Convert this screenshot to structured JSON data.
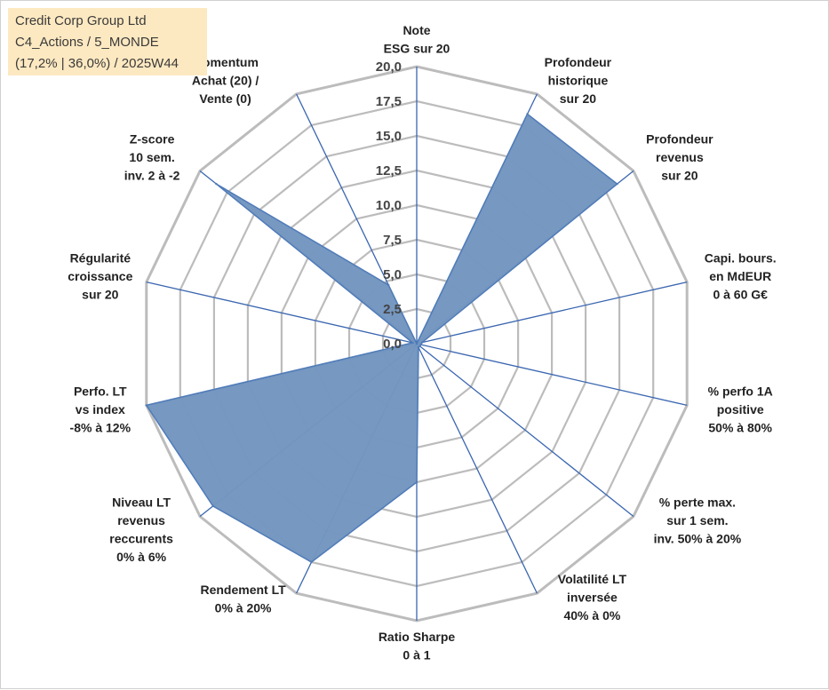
{
  "title_box": {
    "line1": "Credit Corp Group Ltd",
    "line2": "C4_Actions / 5_MONDE",
    "line3": "(17,2% | 36,0%) / 2025W44",
    "background": "#fde9c1"
  },
  "chart_data": {
    "type": "radar",
    "title": "Credit Corp Group Ltd",
    "rmin": 0,
    "rmax": 20,
    "tick_values": [
      0,
      2.5,
      5,
      7.5,
      10,
      12.5,
      15,
      17.5,
      20
    ],
    "tick_labels": [
      "0,0",
      "2,5",
      "5,0",
      "7,5",
      "10,0",
      "12,5",
      "15,0",
      "17,5",
      "20,0"
    ],
    "axes": [
      {
        "lines": [
          "Note",
          "ESG sur 20"
        ]
      },
      {
        "lines": [
          "Profondeur",
          "historique",
          "sur 20"
        ]
      },
      {
        "lines": [
          "Profondeur",
          "revenus",
          "sur 20"
        ]
      },
      {
        "lines": [
          "Capi. bours.",
          "en MdEUR",
          "0 à 60 G€"
        ]
      },
      {
        "lines": [
          "% perfo 1A",
          "positive",
          "50% à 80%"
        ]
      },
      {
        "lines": [
          "% perte max.",
          "sur 1 sem.",
          "inv. 50% à 20%"
        ]
      },
      {
        "lines": [
          "Volatilité LT",
          "inversée",
          "40% à 0%"
        ]
      },
      {
        "lines": [
          "Ratio Sharpe",
          "0 à 1"
        ]
      },
      {
        "lines": [
          "Rendement LT",
          "0% à 20%"
        ]
      },
      {
        "lines": [
          "Niveau LT",
          "revenus",
          "reccurents",
          "0% à 6%"
        ]
      },
      {
        "lines": [
          "Perfo. LT",
          "vs index",
          "-8% à 12%"
        ]
      },
      {
        "lines": [
          "Régularité",
          "croissance",
          "sur 20"
        ]
      },
      {
        "lines": [
          "Z-score",
          "10 sem.",
          "inv. 2 à -2"
        ]
      },
      {
        "lines": [
          "Momentum",
          "Achat (20) /",
          "Vente (0)"
        ]
      }
    ],
    "series": [
      {
        "name": "Credit Corp Group Ltd",
        "values": [
          0,
          18.4,
          18.5,
          0.4,
          0.3,
          0.3,
          0.3,
          10.0,
          17.5,
          18.8,
          20.0,
          0.3,
          18.5,
          4.7
        ]
      }
    ],
    "colors": {
      "fill": "#7396c0",
      "stroke": "#4f7bb8",
      "grid": "#bcbcbc",
      "axis": "#3a66b0"
    }
  }
}
